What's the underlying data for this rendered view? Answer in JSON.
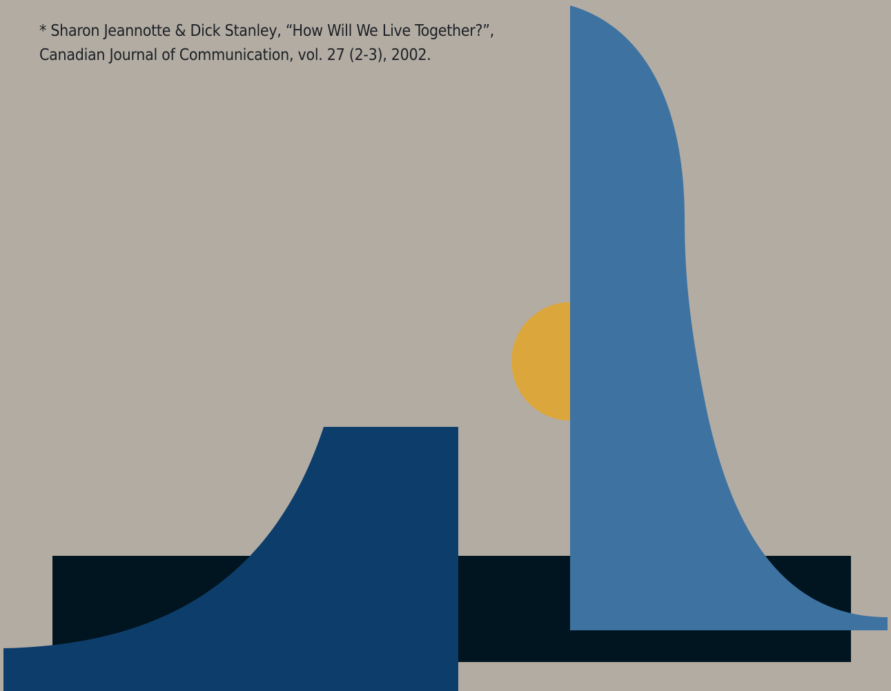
{
  "footnote": {
    "line1": "* Sharon Jeannotte & Dick Stanley, “How Will We Live Together?”,",
    "line2": "Canadian Journal of Communication, vol. 27 (2-3), 2002."
  },
  "colors": {
    "background": "#b2aca3",
    "black_bar": "#011520",
    "navy": "#0d3d6b",
    "light_blue": "#3d72a1",
    "yellow": "#dba73c"
  }
}
